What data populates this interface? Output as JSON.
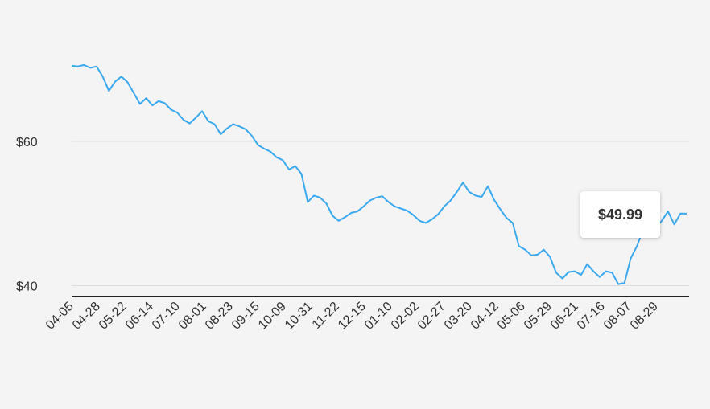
{
  "chart_data": {
    "type": "line",
    "title": "",
    "xlabel": "",
    "ylabel": "",
    "ylim": [
      38.5,
      78.5
    ],
    "y_ticks": [
      {
        "value": 40,
        "label": "$40"
      },
      {
        "value": 60,
        "label": "$60"
      }
    ],
    "x_tick_labels": [
      "04-05",
      "04-28",
      "05-22",
      "06-14",
      "07-10",
      "08-01",
      "08-23",
      "09-15",
      "10-09",
      "10-31",
      "11-22",
      "12-15",
      "01-10",
      "02-02",
      "02-27",
      "03-20",
      "04-12",
      "05-06",
      "05-29",
      "06-21",
      "07-16",
      "08-07",
      "08-29"
    ],
    "grid": true,
    "line_color": "#3aa9ee",
    "series": [
      {
        "values": [
          70.5,
          70.4,
          70.6,
          70.2,
          70.4,
          69.0,
          67.0,
          68.3,
          69.0,
          68.2,
          66.7,
          65.2,
          66.0,
          65.0,
          65.6,
          65.3,
          64.4,
          64.0,
          63.0,
          62.5,
          63.3,
          64.2,
          62.8,
          62.4,
          61.0,
          61.8,
          62.4,
          62.1,
          61.7,
          60.8,
          59.5,
          59.0,
          58.6,
          57.8,
          57.4,
          56.1,
          56.6,
          55.5,
          51.6,
          52.5,
          52.2,
          51.4,
          49.7,
          49.0,
          49.5,
          50.1,
          50.3,
          51.0,
          51.8,
          52.2,
          52.4,
          51.6,
          51.0,
          50.7,
          50.4,
          49.8,
          49.0,
          48.7,
          49.2,
          49.9,
          51.0,
          51.8,
          53.0,
          54.3,
          53.0,
          52.5,
          52.3,
          53.8,
          51.9,
          50.6,
          49.4,
          48.7,
          45.5,
          45.0,
          44.2,
          44.3,
          45.0,
          44.0,
          41.8,
          41.0,
          41.9,
          42.0,
          41.5,
          43.0,
          42.0,
          41.2,
          42.0,
          41.8,
          40.2,
          40.4,
          43.8,
          45.5,
          47.8,
          48.4,
          48.0,
          49.0,
          50.3,
          48.5,
          50.0,
          49.99
        ]
      }
    ],
    "tooltip": {
      "value": "$49.99"
    }
  }
}
